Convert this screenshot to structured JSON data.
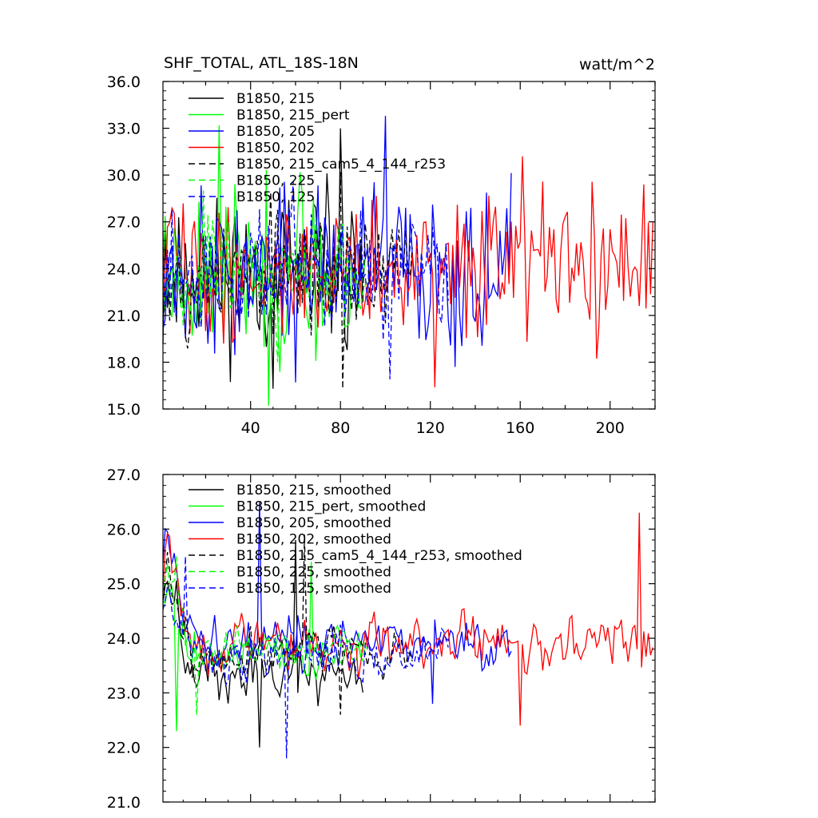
{
  "chart_data": [
    {
      "type": "line",
      "title": "SHF_TOTAL, ATL_18S-18N",
      "units": "watt/m^2",
      "xlim": [
        1,
        220
      ],
      "ylim": [
        15.0,
        36.0
      ],
      "yticks": [
        "15.0",
        "18.0",
        "21.0",
        "24.0",
        "27.0",
        "30.0",
        "33.0",
        "36.0"
      ],
      "xticks": [
        "40",
        "80",
        "120",
        "160",
        "200"
      ],
      "grid": false,
      "legend_position": "top-left",
      "series": [
        {
          "name": "B1850, 215",
          "color": "#000000",
          "dash": "solid",
          "n": 90,
          "x_range": [
            1,
            90
          ],
          "y_range": [
            16.3,
            33.0
          ],
          "y_mean": 23.6
        },
        {
          "name": "B1850, 215_pert",
          "color": "#00ff00",
          "dash": "solid",
          "n": 91,
          "x_range": [
            1,
            91
          ],
          "y_range": [
            15.2,
            33.2
          ],
          "y_mean": 23.7
        },
        {
          "name": "B1850, 205",
          "color": "#0000ff",
          "dash": "solid",
          "n": 156,
          "x_range": [
            1,
            156
          ],
          "y_range": [
            16.7,
            33.8
          ],
          "y_mean": 24.0
        },
        {
          "name": "B1850, 202",
          "color": "#ff0000",
          "dash": "solid",
          "n": 219,
          "x_range": [
            1,
            219
          ],
          "y_range": [
            16.4,
            31.2
          ],
          "y_mean": 24.0
        },
        {
          "name": "B1850, 215_cam5_4_144_r253",
          "color": "#000000",
          "dash": "dashed",
          "n": 112,
          "x_range": [
            1,
            112
          ],
          "y_range": [
            16.3,
            30.2
          ],
          "y_mean": 23.7
        },
        {
          "name": "B1850, 225",
          "color": "#00ff00",
          "dash": "dashed",
          "n": 92,
          "x_range": [
            1,
            92
          ],
          "y_range": [
            18.0,
            29.0
          ],
          "y_mean": 23.9
        },
        {
          "name": "B1850, 125",
          "color": "#0000ff",
          "dash": "dashed",
          "n": 128,
          "x_range": [
            1,
            128
          ],
          "y_range": [
            16.9,
            29.6
          ],
          "y_mean": 23.9
        }
      ]
    },
    {
      "type": "line",
      "title": "",
      "xlim": [
        1,
        220
      ],
      "ylim": [
        21.0,
        27.0
      ],
      "yticks": [
        "21.0",
        "22.0",
        "23.0",
        "24.0",
        "25.0",
        "26.0",
        "27.0"
      ],
      "xticks": [],
      "grid": false,
      "legend_position": "top-left",
      "series": [
        {
          "name": "B1850, 215, smoothed",
          "color": "#000000",
          "dash": "solid",
          "n": 90,
          "x_range": [
            1,
            90
          ],
          "y_range": [
            22.0,
            25.8
          ],
          "y_mean": 23.3
        },
        {
          "name": "B1850, 215_pert, smoothed",
          "color": "#00ff00",
          "dash": "solid",
          "n": 91,
          "x_range": [
            1,
            91
          ],
          "y_range": [
            22.3,
            25.4
          ],
          "y_mean": 23.7
        },
        {
          "name": "B1850, 205, smoothed",
          "color": "#0000ff",
          "dash": "solid",
          "n": 156,
          "x_range": [
            1,
            156
          ],
          "y_range": [
            22.8,
            26.5
          ],
          "y_mean": 23.9
        },
        {
          "name": "B1850, 202, smoothed",
          "color": "#ff0000",
          "dash": "solid",
          "n": 219,
          "x_range": [
            1,
            219
          ],
          "y_range": [
            22.4,
            26.3
          ],
          "y_mean": 23.9
        },
        {
          "name": "B1850, 215_cam5_4_144_r253, smoothed",
          "color": "#000000",
          "dash": "dashed",
          "n": 112,
          "x_range": [
            1,
            112
          ],
          "y_range": [
            22.6,
            25.9
          ],
          "y_mean": 23.7
        },
        {
          "name": "B1850, 225, smoothed",
          "color": "#00ff00",
          "dash": "dashed",
          "n": 92,
          "x_range": [
            1,
            92
          ],
          "y_range": [
            22.6,
            25.5
          ],
          "y_mean": 23.9
        },
        {
          "name": "B1850, 125, smoothed",
          "color": "#0000ff",
          "dash": "dashed",
          "n": 128,
          "x_range": [
            1,
            128
          ],
          "y_range": [
            21.8,
            25.5
          ],
          "y_mean": 23.7
        }
      ]
    }
  ]
}
